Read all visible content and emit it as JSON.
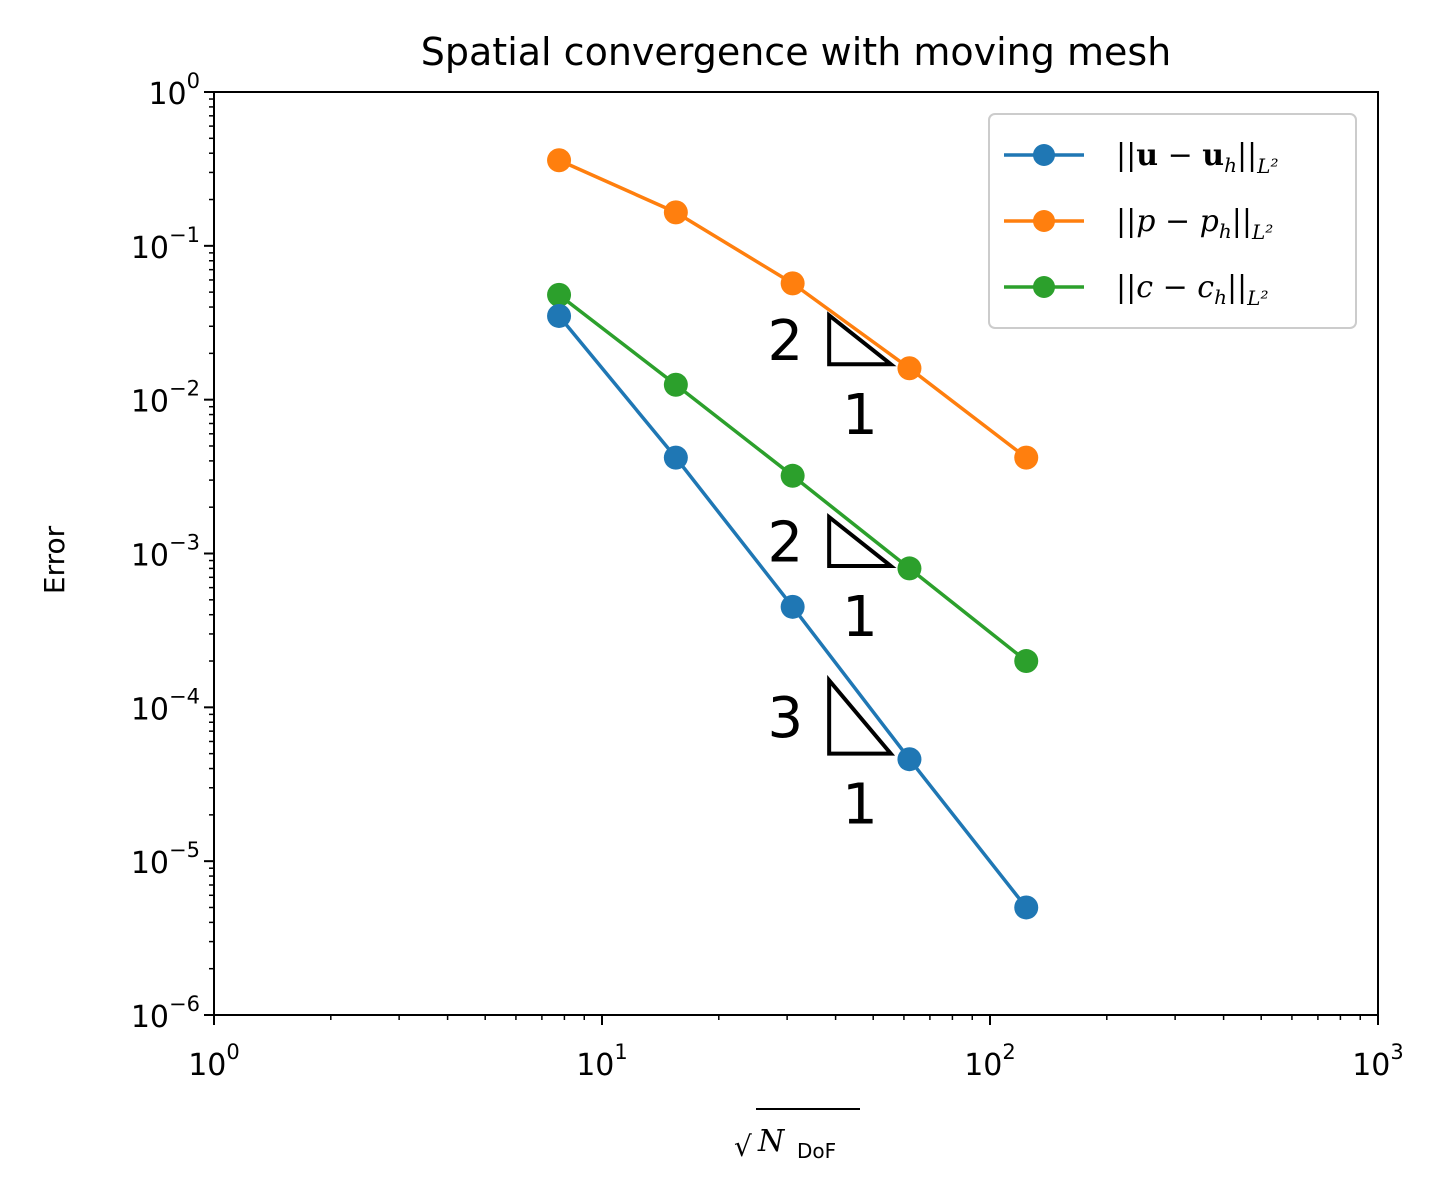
{
  "chart_data": {
    "type": "line",
    "title": "Spatial convergence with moving mesh",
    "xlabel": "√N_DoF",
    "ylabel": "Error",
    "xscale": "log",
    "yscale": "log",
    "xlim": [
      1,
      1000
    ],
    "ylim": [
      1e-06,
      1
    ],
    "x_ticks": [
      {
        "base": "10",
        "exp": "0",
        "value": 1
      },
      {
        "base": "10",
        "exp": "1",
        "value": 10
      },
      {
        "base": "10",
        "exp": "2",
        "value": 100
      },
      {
        "base": "10",
        "exp": "3",
        "value": 1000
      }
    ],
    "y_ticks": [
      {
        "base": "10",
        "exp": "0",
        "value": 1
      },
      {
        "base": "10",
        "exp": "−1",
        "value": 0.1
      },
      {
        "base": "10",
        "exp": "−2",
        "value": 0.01
      },
      {
        "base": "10",
        "exp": "−3",
        "value": 0.001
      },
      {
        "base": "10",
        "exp": "−4",
        "value": 0.0001
      },
      {
        "base": "10",
        "exp": "−5",
        "value": 1e-05
      },
      {
        "base": "10",
        "exp": "−6",
        "value": 1e-06
      }
    ],
    "grid": false,
    "legend_position": "top-right",
    "x": [
      7.75,
      15.5,
      31,
      62,
      124
    ],
    "series": [
      {
        "name": "||u − u_h||_L²",
        "color": "#1f77b4",
        "values": [
          0.035,
          0.0042,
          0.00045,
          4.6e-05,
          5e-06
        ]
      },
      {
        "name": "||p − p_h||_L²",
        "color": "#ff7f0e",
        "values": [
          0.36,
          0.165,
          0.057,
          0.016,
          0.0042
        ]
      },
      {
        "name": "||c − c_h||_L²",
        "color": "#2ca02c",
        "values": [
          0.048,
          0.0125,
          0.0032,
          0.0008,
          0.0002
        ]
      }
    ],
    "slope_triangles": [
      {
        "rise": "2",
        "run": "1",
        "x_range": [
          38.5,
          55.5
        ],
        "y_base": 0.017,
        "series": "p"
      },
      {
        "rise": "2",
        "run": "1",
        "x_range": [
          38.5,
          55.5
        ],
        "y_base": 0.00083,
        "series": "c"
      },
      {
        "rise": "3",
        "run": "1",
        "x_range": [
          38.5,
          55.5
        ],
        "y_base": 5e-05,
        "series": "u"
      }
    ]
  },
  "legend": {
    "u": {
      "pre": "||",
      "v1": "u",
      "minus": " − ",
      "v2": "u",
      "sub": "h",
      "post": "||",
      "norm": "L²"
    },
    "p": {
      "pre": "||",
      "v1": "p",
      "minus": " − ",
      "v2": "p",
      "sub": "h",
      "post": "||",
      "norm": "L²"
    },
    "c": {
      "pre": "||",
      "v1": "c",
      "minus": " − ",
      "v2": "c",
      "sub": "h",
      "post": "||",
      "norm": "L²"
    }
  },
  "xlabel_parts": {
    "root": "√",
    "var": "N",
    "sub": "DoF"
  }
}
